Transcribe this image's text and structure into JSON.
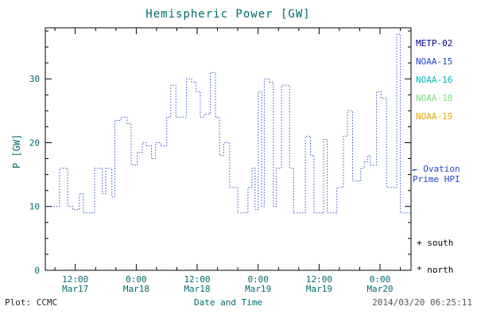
{
  "chart_data": {
    "type": "line",
    "subtype": "dotted-step",
    "title": "Hemispheric Power [GW]",
    "xlabel": "Date and Time",
    "ylabel": "P [GW]",
    "ylim": [
      0,
      38
    ],
    "y_ticks": [
      0,
      10,
      20,
      30
    ],
    "y_minor_step": 2.5,
    "xlim_hours": [
      6.1,
      78.1
    ],
    "x_minor_step_hours": 4,
    "x_ticks": [
      {
        "t": 12,
        "time": "12:00",
        "date": "Mar17"
      },
      {
        "t": 24,
        "time": "0:00",
        "date": "Mar18"
      },
      {
        "t": 36,
        "time": "12:00",
        "date": "Mar18"
      },
      {
        "t": 48,
        "time": "0:00",
        "date": "Mar19"
      },
      {
        "t": 60,
        "time": "12:00",
        "date": "Mar19"
      },
      {
        "t": 72,
        "time": "0:00",
        "date": "Mar20"
      }
    ],
    "line_color": "#3355BB",
    "axis_color": "#000000",
    "text_color": "#006B6B",
    "steps": [
      [
        6.1,
        10
      ],
      [
        8.9,
        16
      ],
      [
        10.5,
        10
      ],
      [
        11.5,
        9.5
      ],
      [
        12.8,
        12
      ],
      [
        13.6,
        9
      ],
      [
        15.8,
        16
      ],
      [
        17.3,
        12
      ],
      [
        18.0,
        16
      ],
      [
        19.2,
        11.5
      ],
      [
        19.8,
        23.5
      ],
      [
        21.0,
        24
      ],
      [
        22.2,
        23
      ],
      [
        23.0,
        16.5
      ],
      [
        24.2,
        18.5
      ],
      [
        25.2,
        20
      ],
      [
        26.0,
        19.5
      ],
      [
        27.0,
        17.5
      ],
      [
        27.8,
        20
      ],
      [
        28.8,
        19.5
      ],
      [
        30.0,
        24
      ],
      [
        30.8,
        29
      ],
      [
        31.8,
        24
      ],
      [
        33.0,
        24
      ],
      [
        33.9,
        30
      ],
      [
        34.9,
        29.5
      ],
      [
        35.8,
        28
      ],
      [
        36.6,
        24
      ],
      [
        37.4,
        24.5
      ],
      [
        38.6,
        31
      ],
      [
        39.6,
        24
      ],
      [
        40.4,
        18
      ],
      [
        41.2,
        20
      ],
      [
        42.4,
        13
      ],
      [
        44.0,
        9
      ],
      [
        46.0,
        13
      ],
      [
        46.8,
        16
      ],
      [
        47.4,
        9.5
      ],
      [
        48.0,
        28
      ],
      [
        48.7,
        10
      ],
      [
        49.2,
        30
      ],
      [
        50.2,
        29.5
      ],
      [
        51.0,
        10
      ],
      [
        51.6,
        16
      ],
      [
        52.6,
        29
      ],
      [
        54.2,
        16
      ],
      [
        55.0,
        9
      ],
      [
        57.3,
        21
      ],
      [
        58.3,
        18
      ],
      [
        59.0,
        9
      ],
      [
        60.9,
        20.5
      ],
      [
        61.6,
        9
      ],
      [
        63.5,
        13
      ],
      [
        64.8,
        21
      ],
      [
        65.6,
        25
      ],
      [
        66.6,
        14
      ],
      [
        68.2,
        16
      ],
      [
        68.9,
        17
      ],
      [
        69.6,
        18
      ],
      [
        70.1,
        16.5
      ],
      [
        71.3,
        28
      ],
      [
        72.2,
        27
      ],
      [
        73.3,
        13
      ],
      [
        75.3,
        37
      ],
      [
        76.0,
        9
      ],
      [
        78.0,
        9
      ]
    ]
  },
  "legend": {
    "satellites": [
      {
        "label": "METP-02",
        "color": "#00008B"
      },
      {
        "label": "NOAA-15",
        "color": "#2244CC"
      },
      {
        "label": "NOAA-16",
        "color": "#00B8B8"
      },
      {
        "label": "NOAA-18",
        "color": "#77DD77"
      },
      {
        "label": "NOAA-19",
        "color": "#EEA500"
      }
    ],
    "ovation_line1": "– Ovation",
    "ovation_line2": "Prime HPI",
    "ovation_color": "#2244CC",
    "south": "+ south",
    "north": "* north"
  },
  "footer": {
    "credit": "Plot: CCMC",
    "timestamp": "2014/03/20 06:25:11"
  }
}
